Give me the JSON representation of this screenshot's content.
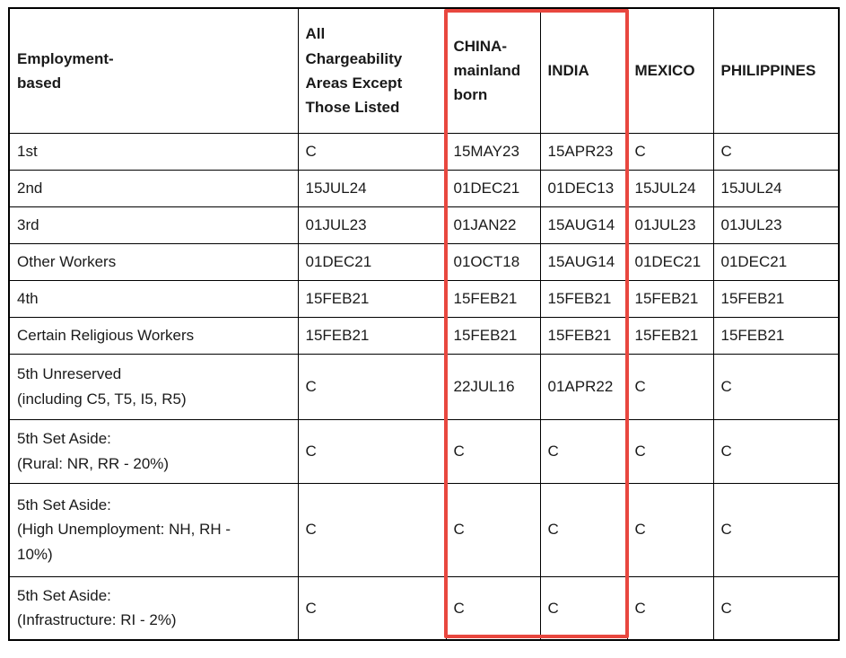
{
  "table": {
    "corner_header": "Employment-\nbased",
    "columns": [
      "All\nChargeability\nAreas Except\nThose Listed",
      "CHINA-\nmainland\nborn",
      "INDIA",
      "MEXICO",
      "PHILIPPINES"
    ],
    "rows": [
      {
        "label": "1st",
        "values": [
          "C",
          "15MAY23",
          "15APR23",
          "C",
          "C"
        ]
      },
      {
        "label": "2nd",
        "values": [
          "15JUL24",
          "01DEC21",
          "01DEC13",
          "15JUL24",
          "15JUL24"
        ]
      },
      {
        "label": "3rd",
        "values": [
          "01JUL23",
          "01JAN22",
          "15AUG14",
          "01JUL23",
          "01JUL23"
        ]
      },
      {
        "label": "Other Workers",
        "values": [
          "01DEC21",
          "01OCT18",
          "15AUG14",
          "01DEC21",
          "01DEC21"
        ]
      },
      {
        "label": "4th",
        "values": [
          "15FEB21",
          "15FEB21",
          "15FEB21",
          "15FEB21",
          "15FEB21"
        ]
      },
      {
        "label": "Certain Religious Workers",
        "values": [
          "15FEB21",
          "15FEB21",
          "15FEB21",
          "15FEB21",
          "15FEB21"
        ]
      },
      {
        "label": "5th Unreserved\n(including C5, T5, I5, R5)",
        "values": [
          "C",
          "22JUL16",
          "01APR22",
          "C",
          "C"
        ]
      },
      {
        "label": "5th Set Aside:\n(Rural: NR, RR - 20%)",
        "values": [
          "C",
          "C",
          "C",
          "C",
          "C"
        ]
      },
      {
        "label": "5th Set Aside:\n(High Unemployment: NH, RH -\n10%)",
        "values": [
          "C",
          "C",
          "C",
          "C",
          "C"
        ]
      },
      {
        "label": "5th Set Aside:\n(Infrastructure: RI - 2%)",
        "values": [
          "C",
          "C",
          "C",
          "C",
          "C"
        ]
      }
    ],
    "highlight": {
      "color": "#e8473f",
      "columns": [
        "CHINA-mainland born",
        "INDIA"
      ]
    }
  },
  "colors": {
    "table_border": "#000000",
    "text": "#1a1a1a",
    "background": "#ffffff"
  }
}
